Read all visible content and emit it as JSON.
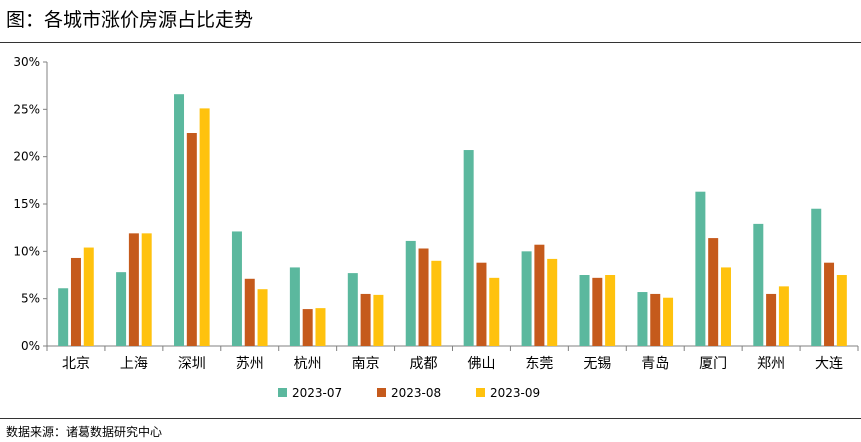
{
  "title": "图：各城市涨价房源占比走势",
  "source": "数据来源：诸葛数据研究中心",
  "colors": {
    "series": [
      "#5BB89E",
      "#C55A1C",
      "#FFC20E"
    ],
    "axis": "#808080"
  },
  "chart_data": {
    "type": "bar",
    "categories": [
      "北京",
      "上海",
      "深圳",
      "苏州",
      "杭州",
      "南京",
      "成都",
      "佛山",
      "东莞",
      "无锡",
      "青岛",
      "厦门",
      "郑州",
      "大连"
    ],
    "series": [
      {
        "name": "2023-07",
        "values": [
          6.1,
          7.8,
          26.6,
          12.1,
          8.3,
          7.7,
          11.1,
          20.7,
          10.0,
          7.5,
          5.7,
          16.3,
          12.9,
          14.5
        ]
      },
      {
        "name": "2023-08",
        "values": [
          9.3,
          11.9,
          22.5,
          7.1,
          3.9,
          5.5,
          10.3,
          8.8,
          10.7,
          7.2,
          5.5,
          11.4,
          5.5,
          8.8
        ]
      },
      {
        "name": "2023-09",
        "values": [
          10.4,
          11.9,
          25.1,
          6.0,
          4.0,
          5.4,
          9.0,
          7.2,
          9.2,
          7.5,
          5.1,
          8.3,
          6.3,
          7.5
        ]
      }
    ],
    "yticks": [
      "0%",
      "5%",
      "10%",
      "15%",
      "20%",
      "25%",
      "30%"
    ],
    "ylim": [
      0,
      30
    ],
    "legend_position": "bottom-center",
    "grid": false
  }
}
